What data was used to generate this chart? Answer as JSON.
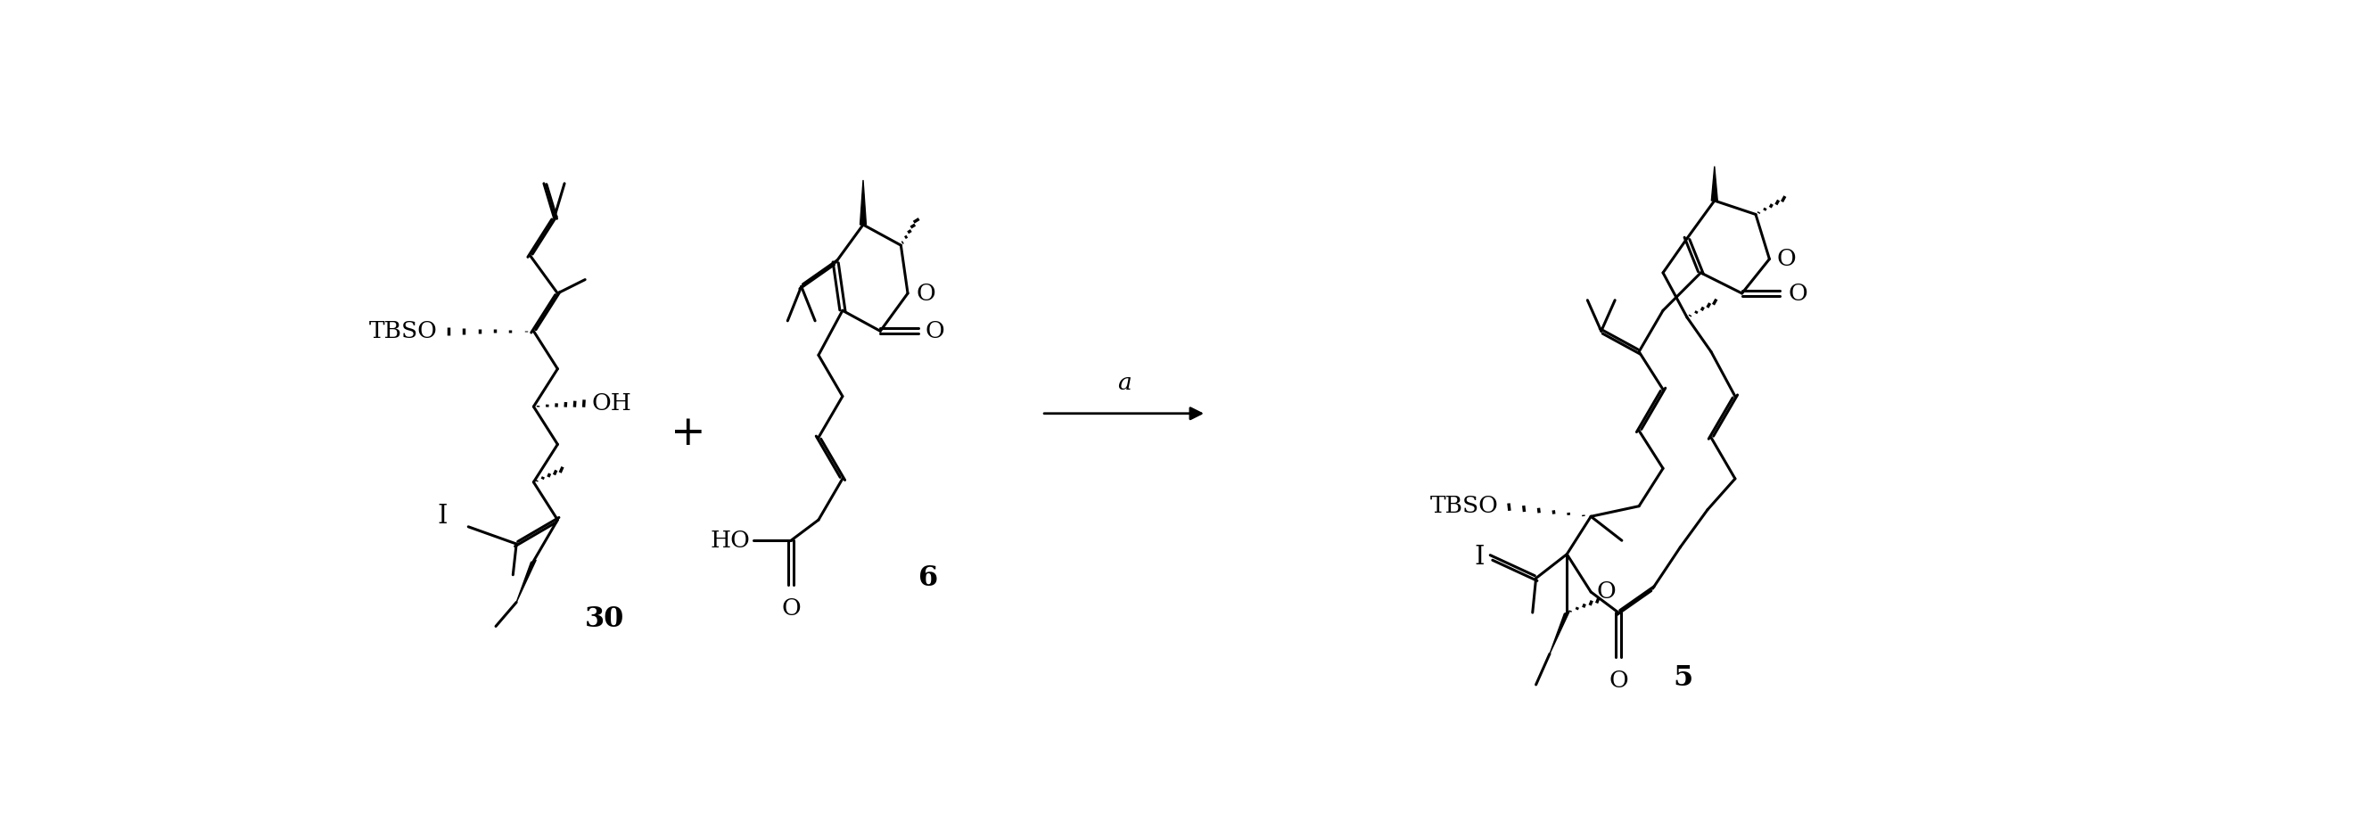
{
  "background_color": "#ffffff",
  "lw": 2.2,
  "font_size": 19,
  "font_size_num": 23,
  "TBSO": "TBSO",
  "OH": "OH",
  "I": "I",
  "HO": "HO",
  "O": "O",
  "num30": "30",
  "num6": "6",
  "num5": "5",
  "arrow_label": "a"
}
